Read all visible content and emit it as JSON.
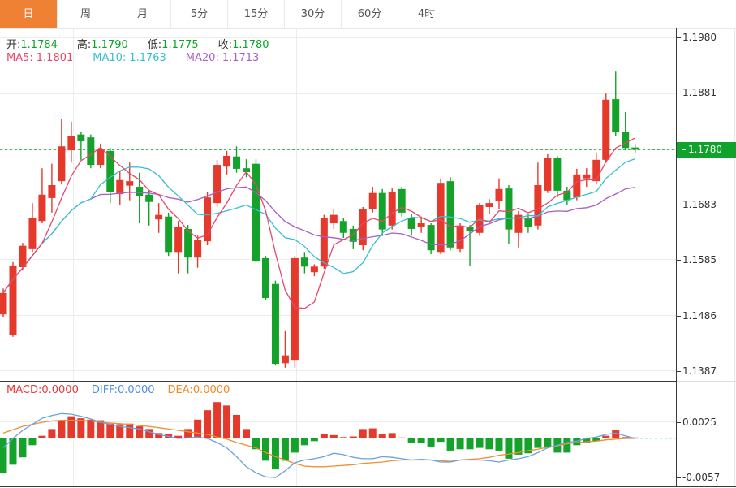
{
  "tabs": {
    "items": [
      {
        "label": "日",
        "selected": true
      },
      {
        "label": "周",
        "selected": false
      },
      {
        "label": "月",
        "selected": false
      },
      {
        "label": "5分",
        "selected": false
      },
      {
        "label": "15分",
        "selected": false
      },
      {
        "label": "30分",
        "selected": false
      },
      {
        "label": "60分",
        "selected": false
      },
      {
        "label": "4时",
        "selected": false
      }
    ]
  },
  "ohlc_row": {
    "open_label": "开:",
    "open": "1.1784",
    "high_label": "高:",
    "high": "1.1790",
    "low_label": "低:",
    "low": "1.1775",
    "close_label": "收:",
    "close": "1.1780"
  },
  "ma_row": {
    "ma5_label": "MA5:",
    "ma5": "1.1801",
    "ma10_label": "MA10:",
    "ma10": "1.1763",
    "ma20_label": "MA20:",
    "ma20": "1.1713"
  },
  "macd_row": {
    "macd_label": "MACD:",
    "macd": "0.0000",
    "diff_label": "DIFF:",
    "diff": "0.0000",
    "dea_label": "DEA:",
    "dea": "0.0000"
  },
  "price_axis": {
    "labels": [
      "1.1980",
      "1.1881",
      "1.1780",
      "1.1683",
      "1.1585",
      "1.1486",
      "1.1387"
    ],
    "current_price": "1.1780"
  },
  "macd_axis": {
    "labels": [
      "0.0025",
      "-0.0057"
    ]
  },
  "colors": {
    "accent_orange": "#ef8135",
    "candle_up": "#e5392c",
    "candle_down": "#15a22a",
    "ma5": "#e8466b",
    "ma10": "#35c0d0",
    "ma20": "#a95fc2",
    "ohlc_value_green": "#0da32a",
    "macd_text": "#e23b3b",
    "diff_line": "#6aa1e0",
    "dea_line": "#ef8f35",
    "price_line": "#2fae4a",
    "badge_bg": "#0fa32c",
    "zero_dash": "#8fd8e0",
    "axis_line": "#3a3a3a",
    "grid": "#ececec"
  },
  "chart_data": [
    {
      "type": "candlestick",
      "title": "Daily price panel (EUR/USD style K-line)",
      "y_axis_ticks": [
        1.198,
        1.1881,
        1.178,
        1.1683,
        1.1585,
        1.1486,
        1.1387
      ],
      "ylim": [
        1.134,
        1.199
      ],
      "current_price": 1.178,
      "ma_periods": [
        5,
        10,
        20
      ],
      "ma_last_values": {
        "ma5": 1.1801,
        "ma10": 1.1763,
        "ma20": 1.1713
      },
      "up_means": "red (close >= open)",
      "down_means": "green (close < open)",
      "ohlc": [
        [
          1.1487,
          1.1533,
          1.1482,
          1.1525
        ],
        [
          1.1451,
          1.158,
          1.1447,
          1.1574
        ],
        [
          1.1571,
          1.1614,
          1.1565,
          1.1609
        ],
        [
          1.1603,
          1.1685,
          1.1598,
          1.1658
        ],
        [
          1.1653,
          1.1747,
          1.1649,
          1.17
        ],
        [
          1.1694,
          1.1755,
          1.1668,
          1.1717
        ],
        [
          1.1724,
          1.1834,
          1.1718,
          1.1786
        ],
        [
          1.1779,
          1.183,
          1.1757,
          1.1805
        ],
        [
          1.1807,
          1.1812,
          1.1762,
          1.1795
        ],
        [
          1.1802,
          1.1807,
          1.1747,
          1.1753
        ],
        [
          1.1753,
          1.1791,
          1.1747,
          1.1782
        ],
        [
          1.1778,
          1.1783,
          1.1685,
          1.1704
        ],
        [
          1.1701,
          1.1743,
          1.1681,
          1.1726
        ],
        [
          1.1716,
          1.1757,
          1.169,
          1.1724
        ],
        [
          1.1714,
          1.1739,
          1.1649,
          1.1697
        ],
        [
          1.17,
          1.1707,
          1.1645,
          1.1687
        ],
        [
          1.1656,
          1.1685,
          1.1632,
          1.1664
        ],
        [
          1.1661,
          1.1668,
          1.1591,
          1.1598
        ],
        [
          1.1598,
          1.1653,
          1.156,
          1.1642
        ],
        [
          1.1639,
          1.1646,
          1.156,
          1.1588
        ],
        [
          1.1588,
          1.1627,
          1.157,
          1.162
        ],
        [
          1.1617,
          1.1704,
          1.161,
          1.1695
        ],
        [
          1.1685,
          1.1762,
          1.1678,
          1.1753
        ],
        [
          1.175,
          1.1778,
          1.1736,
          1.1769
        ],
        [
          1.1768,
          1.1786,
          1.1739,
          1.1746
        ],
        [
          1.1747,
          1.1763,
          1.1731,
          1.174
        ],
        [
          1.1755,
          1.1763,
          1.158,
          1.1581
        ],
        [
          1.1587,
          1.1591,
          1.1512,
          1.1516
        ],
        [
          1.1541,
          1.1547,
          1.1396,
          1.1399
        ],
        [
          1.14,
          1.1457,
          1.1392,
          1.1414
        ],
        [
          1.1406,
          1.1591,
          1.1392,
          1.1587
        ],
        [
          1.1588,
          1.1598,
          1.156,
          1.1572
        ],
        [
          1.1562,
          1.1576,
          1.1555,
          1.1572
        ],
        [
          1.1572,
          1.1664,
          1.1568,
          1.1659
        ],
        [
          1.1649,
          1.1674,
          1.1639,
          1.1664
        ],
        [
          1.1653,
          1.1659,
          1.1623,
          1.1632
        ],
        [
          1.1639,
          1.1645,
          1.1603,
          1.1616
        ],
        [
          1.161,
          1.1678,
          1.1601,
          1.1674
        ],
        [
          1.1674,
          1.1714,
          1.1668,
          1.1703
        ],
        [
          1.1703,
          1.171,
          1.1627,
          1.1638
        ],
        [
          1.1645,
          1.1711,
          1.1638,
          1.1704
        ],
        [
          1.171,
          1.1714,
          1.1661,
          1.1668
        ],
        [
          1.1659,
          1.1666,
          1.1627,
          1.1639
        ],
        [
          1.1642,
          1.1661,
          1.1632,
          1.1649
        ],
        [
          1.1646,
          1.1649,
          1.1594,
          1.1601
        ],
        [
          1.1598,
          1.1729,
          1.1594,
          1.1721
        ],
        [
          1.1724,
          1.1731,
          1.1601,
          1.1606
        ],
        [
          1.1603,
          1.1649,
          1.1598,
          1.1645
        ],
        [
          1.1642,
          1.1646,
          1.1574,
          1.1635
        ],
        [
          1.1632,
          1.1685,
          1.1627,
          1.1681
        ],
        [
          1.1678,
          1.1692,
          1.1666,
          1.1685
        ],
        [
          1.1688,
          1.1729,
          1.1675,
          1.171
        ],
        [
          1.1711,
          1.1717,
          1.1613,
          1.1638
        ],
        [
          1.1632,
          1.1671,
          1.1606,
          1.1664
        ],
        [
          1.1659,
          1.1666,
          1.1632,
          1.1642
        ],
        [
          1.1645,
          1.1757,
          1.1638,
          1.1717
        ],
        [
          1.1707,
          1.1772,
          1.1703,
          1.1765
        ],
        [
          1.1765,
          1.1769,
          1.1695,
          1.1707
        ],
        [
          1.1707,
          1.1714,
          1.1681,
          1.169
        ],
        [
          1.1695,
          1.1746,
          1.169,
          1.1736
        ],
        [
          1.1729,
          1.1747,
          1.1714,
          1.1736
        ],
        [
          1.1724,
          1.1775,
          1.1718,
          1.1762
        ],
        [
          1.1762,
          1.188,
          1.1757,
          1.1869
        ],
        [
          1.187,
          1.1919,
          1.1805,
          1.1811
        ],
        [
          1.1812,
          1.1847,
          1.1779,
          1.1783
        ],
        [
          1.1784,
          1.179,
          1.1775,
          1.178
        ]
      ]
    },
    {
      "type": "bar",
      "title": "MACD panel",
      "y_axis_ticks": [
        0.0025,
        -0.0057
      ],
      "zero_baseline": 0,
      "histogram": [
        -0.0052,
        -0.0039,
        -0.0028,
        -0.001,
        0.0004,
        0.0014,
        0.0027,
        0.0033,
        0.003,
        0.0028,
        0.0027,
        0.0022,
        0.0021,
        0.0022,
        0.0018,
        0.0014,
        0.0008,
        0.0006,
        0.0004,
        0.0014,
        0.0028,
        0.0042,
        0.0054,
        0.0049,
        0.0035,
        0.0014,
        -0.0016,
        -0.0033,
        -0.0046,
        -0.0033,
        -0.0021,
        -0.001,
        -0.0004,
        0.0006,
        0.0005,
        0.0002,
        0.0003,
        0.0014,
        0.0015,
        0.0006,
        0.0008,
        0,
        -0.0006,
        -0.0007,
        -0.0012,
        -0.0005,
        -0.0018,
        -0.0016,
        -0.0016,
        -0.0014,
        -0.0016,
        -0.0018,
        -0.003,
        -0.0024,
        -0.0022,
        -0.0014,
        -0.0012,
        -0.0021,
        -0.0021,
        -0.001,
        -0.0006,
        -0.0004,
        0.0004,
        0.0012,
        0.0002,
        0
      ],
      "series": [
        {
          "name": "DIFF",
          "values": [
            -0.0014,
            0,
            0.0012,
            0.0021,
            0.003,
            0.0034,
            0.0037,
            0.0036,
            0.0033,
            0.0029,
            0.0024,
            0.0021,
            0.0018,
            0.0016,
            0.0014,
            0.001,
            0.0006,
            0.0003,
            0,
            0.0001,
            0.0002,
            0,
            -0.0006,
            -0.0014,
            -0.0027,
            -0.0042,
            -0.0051,
            -0.0057,
            -0.0058,
            -0.0048,
            -0.0036,
            -0.0032,
            -0.003,
            -0.0027,
            -0.0022,
            -0.0024,
            -0.0028,
            -0.003,
            -0.003,
            -0.0027,
            -0.0028,
            -0.003,
            -0.0032,
            -0.0031,
            -0.0032,
            -0.0035,
            -0.0035,
            -0.0032,
            -0.0032,
            -0.0032,
            -0.0033,
            -0.0035,
            -0.0032,
            -0.003,
            -0.0027,
            -0.0021,
            -0.0014,
            -0.001,
            -0.0006,
            -0.0004,
            0,
            0.0002,
            0.0006,
            0.0008,
            0.0004,
            0
          ]
        },
        {
          "name": "DEA",
          "values": [
            0.0008,
            0.0013,
            0.0018,
            0.0021,
            0.0024,
            0.0026,
            0.0027,
            0.0027,
            0.0027,
            0.0026,
            0.0024,
            0.0023,
            0.0022,
            0.0021,
            0.0019,
            0.0018,
            0.0016,
            0.0014,
            0.0012,
            0.001,
            0.0008,
            0.0006,
            0.0002,
            -0.0001,
            -0.0006,
            -0.001,
            -0.0014,
            -0.0021,
            -0.0027,
            -0.0032,
            -0.0037,
            -0.0041,
            -0.0042,
            -0.0042,
            -0.0041,
            -0.004,
            -0.0039,
            -0.0037,
            -0.0036,
            -0.0035,
            -0.0033,
            -0.0032,
            -0.0032,
            -0.0032,
            -0.0032,
            -0.0033,
            -0.0034,
            -0.0032,
            -0.0031,
            -0.003,
            -0.0028,
            -0.0025,
            -0.0023,
            -0.0021,
            -0.0018,
            -0.0016,
            -0.0013,
            -0.0011,
            -0.0008,
            -0.0006,
            -0.0005,
            -0.0004,
            -0.0002,
            -0.0001,
            0,
            0
          ]
        }
      ]
    }
  ]
}
